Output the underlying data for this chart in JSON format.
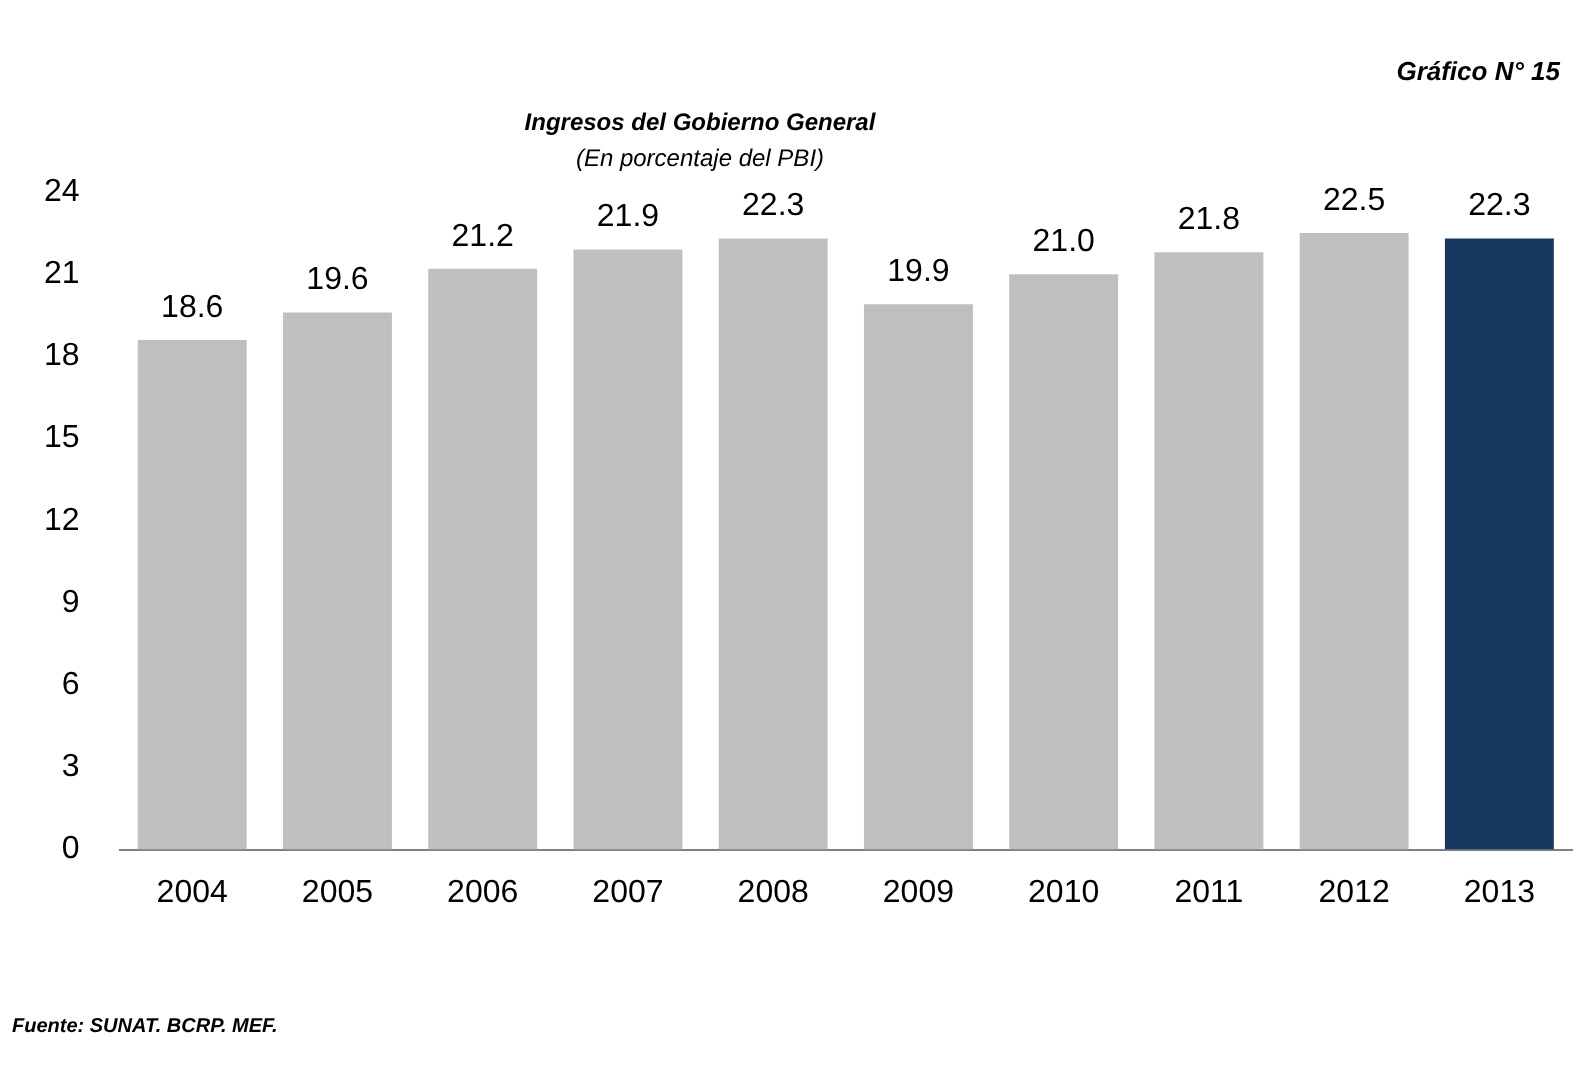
{
  "chart_data": {
    "type": "bar",
    "title": "Ingresos del Gobierno General",
    "subtitle": "(En porcentaje del PBI)",
    "annotations": [
      "Gráfico N° 15",
      "Fuente: SUNAT. BCRP. MEF."
    ],
    "categories": [
      "2004",
      "2005",
      "2006",
      "2007",
      "2008",
      "2009",
      "2010",
      "2011",
      "2012",
      "2013"
    ],
    "values": [
      18.6,
      19.6,
      21.2,
      21.9,
      22.3,
      19.9,
      21.0,
      21.8,
      22.5,
      22.3
    ],
    "value_labels": [
      "18.6",
      "19.6",
      "21.2",
      "21.9",
      "22.3",
      "19.9",
      "21.0",
      "21.8",
      "22.5",
      "22.3"
    ],
    "colors": [
      "#bfbfbf",
      "#bfbfbf",
      "#bfbfbf",
      "#bfbfbf",
      "#bfbfbf",
      "#bfbfbf",
      "#bfbfbf",
      "#bfbfbf",
      "#bfbfbf",
      "#17375e"
    ],
    "ylim": [
      0,
      24
    ],
    "yticks": [
      0,
      3,
      6,
      9,
      12,
      15,
      18,
      21,
      24
    ],
    "grid": false,
    "legend": false
  }
}
